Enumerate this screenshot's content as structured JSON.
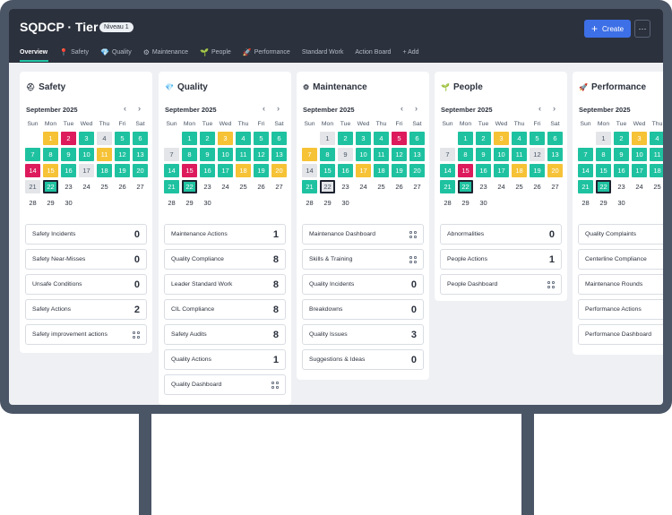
{
  "header": {
    "title": "SQDCP · Tier 2",
    "badge": "Niveau 1",
    "create_label": "Create",
    "more_label": "···",
    "tabs": [
      {
        "label": "Overview",
        "icon": ""
      },
      {
        "label": "Safety",
        "icon": "📍"
      },
      {
        "label": "Quality",
        "icon": "💎"
      },
      {
        "label": "Maintenance",
        "icon": "⚙"
      },
      {
        "label": "People",
        "icon": "🌱"
      },
      {
        "label": "Performance",
        "icon": "🚀"
      },
      {
        "label": "Standard Work",
        "icon": ""
      },
      {
        "label": "Action Board",
        "icon": ""
      },
      {
        "label": "+ Add",
        "icon": ""
      }
    ]
  },
  "weekdays": [
    "Sun",
    "Mon",
    "Tue",
    "Wed",
    "Thu",
    "Fri",
    "Sat"
  ],
  "columns": [
    {
      "name": "safety",
      "title": "Safety",
      "icon": "⛑",
      "month": "September 2025",
      "statuses": [
        "y",
        "r",
        "g",
        "gr",
        "g",
        "g",
        "g",
        "g",
        "g",
        "g",
        "y",
        "g",
        "g",
        "r",
        "y",
        "g",
        "gr",
        "g",
        "g",
        "g",
        "gr",
        "g",
        "",
        "",
        "",
        "",
        "",
        "",
        "",
        "",
        "",
        ""
      ],
      "items": [
        {
          "label": "Safety Incidents",
          "value": "0"
        },
        {
          "label": "Safety Near-Misses",
          "value": "0"
        },
        {
          "label": "Unsafe Conditions",
          "value": "0"
        },
        {
          "label": "Safety Actions",
          "value": "2"
        },
        {
          "label": "Safety improvement actions",
          "value": ""
        }
      ]
    },
    {
      "name": "quality",
      "title": "Quality",
      "icon": "💎",
      "month": "September 2025",
      "statuses": [
        "g",
        "g",
        "y",
        "g",
        "g",
        "g",
        "gr",
        "g",
        "g",
        "g",
        "g",
        "g",
        "g",
        "g",
        "r",
        "g",
        "g",
        "y",
        "g",
        "y",
        "g",
        "g",
        "",
        "",
        "",
        "",
        "",
        "",
        "",
        "",
        "",
        ""
      ],
      "items": [
        {
          "label": "Maintenance Actions",
          "value": "1"
        },
        {
          "label": "Quality Compliance",
          "value": "8"
        },
        {
          "label": "Leader Standard Work",
          "value": "8"
        },
        {
          "label": "CIL Compliance",
          "value": "8"
        },
        {
          "label": "Safety Audits",
          "value": "8"
        },
        {
          "label": "Quality Actions",
          "value": "1"
        },
        {
          "label": "Quality Dashboard",
          "value": ""
        }
      ]
    },
    {
      "name": "maintenance",
      "title": "Maintenance",
      "icon": "⚙",
      "month": "September 2025",
      "statuses": [
        "gr",
        "g",
        "g",
        "g",
        "r",
        "g",
        "y",
        "g",
        "gr",
        "g",
        "g",
        "g",
        "g",
        "gr",
        "g",
        "g",
        "y",
        "g",
        "g",
        "g",
        "g",
        "gr",
        "",
        "",
        "",
        "",
        "",
        "",
        "",
        "",
        "",
        ""
      ],
      "items": [
        {
          "label": "Maintenance Dashboard",
          "value": ""
        },
        {
          "label": "Skills & Training",
          "value": ""
        },
        {
          "label": "Quality Incidents",
          "value": "0"
        },
        {
          "label": "Breakdowns",
          "value": "0"
        },
        {
          "label": "Quality Issues",
          "value": "3"
        },
        {
          "label": "Suggestions & Ideas",
          "value": "0"
        }
      ]
    },
    {
      "name": "people",
      "title": "People",
      "icon": "🌱",
      "month": "September 2025",
      "statuses": [
        "g",
        "g",
        "y",
        "g",
        "g",
        "g",
        "gr",
        "g",
        "g",
        "g",
        "g",
        "gr",
        "g",
        "g",
        "r",
        "g",
        "g",
        "y",
        "g",
        "y",
        "g",
        "g",
        "",
        "",
        "",
        "",
        "",
        "",
        "",
        "",
        "",
        ""
      ],
      "items": [
        {
          "label": "Abnormalities",
          "value": "0"
        },
        {
          "label": "People Actions",
          "value": "1"
        },
        {
          "label": "People Dashboard",
          "value": ""
        }
      ]
    },
    {
      "name": "performance",
      "title": "Performance",
      "icon": "🚀",
      "month": "September 2025",
      "statuses": [
        "gr",
        "g",
        "y",
        "g",
        "y",
        "g",
        "g",
        "g",
        "g",
        "g",
        "g",
        "g",
        "g",
        "g",
        "g",
        "g",
        "g",
        "g",
        "g",
        "y",
        "g",
        "g",
        "",
        "",
        "",
        "",
        "",
        "",
        "",
        "",
        "",
        ""
      ],
      "items": [
        {
          "label": "Quality Complaints",
          "value": ""
        },
        {
          "label": "Centerline Compliance",
          "value": ""
        },
        {
          "label": "Maintenance Rounds",
          "value": ""
        },
        {
          "label": "Performance Actions",
          "value": ""
        },
        {
          "label": "Performance Dashboard",
          "value": ""
        }
      ]
    }
  ],
  "today": 22,
  "first_weekday_offset": 1,
  "days_in_month": 30
}
